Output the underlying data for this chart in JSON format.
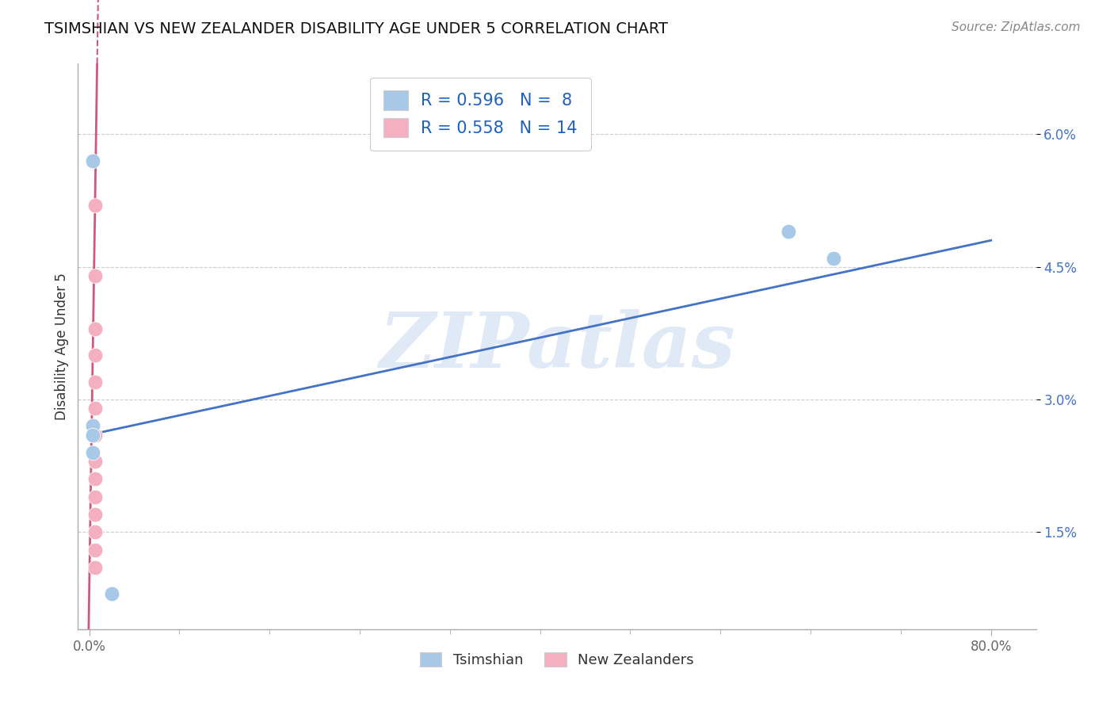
{
  "title": "TSIMSHIAN VS NEW ZEALANDER DISABILITY AGE UNDER 5 CORRELATION CHART",
  "source": "Source: ZipAtlas.com",
  "ylabel": "Disability Age Under 5",
  "x_tick_labels": [
    "0.0%",
    "",
    "",
    "",
    "",
    "",
    "",
    "",
    "",
    "80.0%"
  ],
  "y_tick_labels": [
    "1.5%",
    "3.0%",
    "4.5%",
    "6.0%"
  ],
  "y_tick_values": [
    0.015,
    0.03,
    0.045,
    0.06
  ],
  "xlim": [
    -0.01,
    0.84
  ],
  "ylim": [
    0.004,
    0.068
  ],
  "tsimshian_x": [
    0.003,
    0.003,
    0.003,
    0.003,
    0.003,
    0.62,
    0.66,
    0.02
  ],
  "tsimshian_y": [
    0.057,
    0.027,
    0.026,
    0.024,
    0.026,
    0.049,
    0.046,
    0.008
  ],
  "nz_x": [
    0.005,
    0.005,
    0.005,
    0.005,
    0.005,
    0.005,
    0.005,
    0.005,
    0.005,
    0.005,
    0.005,
    0.005,
    0.005,
    0.005
  ],
  "nz_y": [
    0.052,
    0.044,
    0.038,
    0.035,
    0.032,
    0.029,
    0.026,
    0.023,
    0.021,
    0.019,
    0.017,
    0.015,
    0.013,
    0.011
  ],
  "tsimshian_color": "#A8C8E8",
  "nz_color": "#F4B0C0",
  "tsimshian_R": 0.596,
  "tsimshian_N": 8,
  "nz_R": 0.558,
  "nz_N": 14,
  "line_blue": "#4472C4",
  "line_pink": "#D05878",
  "blue_line_x0": 0.0,
  "blue_line_y0": 0.026,
  "blue_line_x1": 0.8,
  "blue_line_y1": 0.048,
  "pink_line_slope": 8.5,
  "pink_line_intercept": 0.0085,
  "watermark_text": "ZIPatlas",
  "watermark_color": "#C8D8F0"
}
